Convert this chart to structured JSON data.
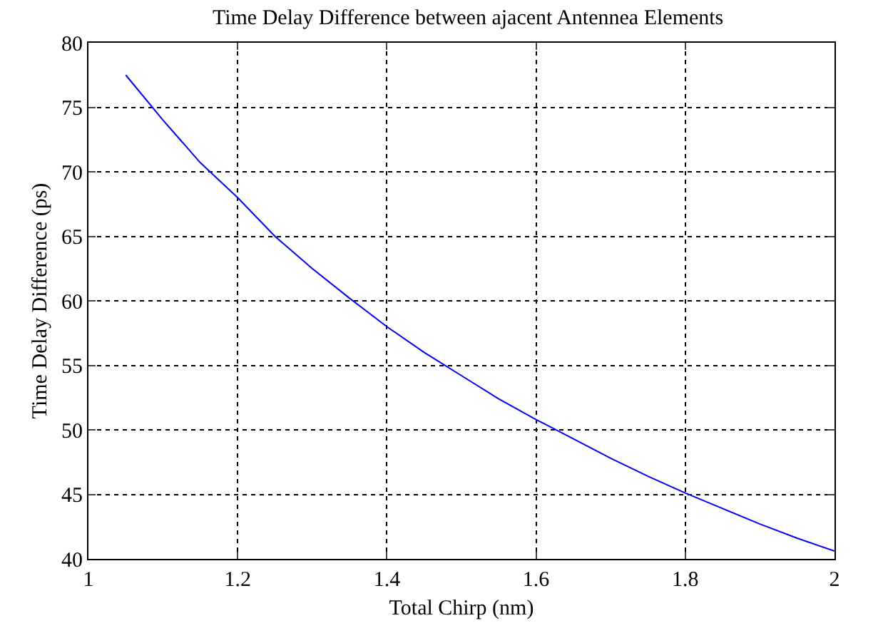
{
  "chart_data": {
    "type": "line",
    "title": "Time Delay Difference between ajacent Antennea Elements",
    "xlabel": "Total Chirp (nm)",
    "ylabel": "Time Delay Difference (ps)",
    "x": [
      1.05,
      1.1,
      1.15,
      1.2,
      1.25,
      1.3,
      1.35,
      1.4,
      1.45,
      1.5,
      1.55,
      1.6,
      1.65,
      1.7,
      1.75,
      1.8,
      1.85,
      1.9,
      1.95,
      2.0
    ],
    "series": [
      {
        "color": "#0000ff",
        "values": [
          77.5,
          74,
          70.7,
          68,
          65,
          62.5,
          60.2,
          58,
          56,
          54.2,
          52.4,
          50.8,
          49.3,
          47.8,
          46.4,
          45.1,
          43.9,
          42.7,
          41.6,
          40.6
        ]
      }
    ],
    "xlim": [
      1,
      2
    ],
    "xticks": [
      1,
      1.2,
      1.4,
      1.6,
      1.8,
      2
    ],
    "ylim": [
      40,
      80
    ],
    "yticks": [
      40,
      45,
      50,
      55,
      60,
      65,
      70,
      75,
      80
    ],
    "grid": true,
    "line_style": "solid",
    "marker": "none"
  }
}
